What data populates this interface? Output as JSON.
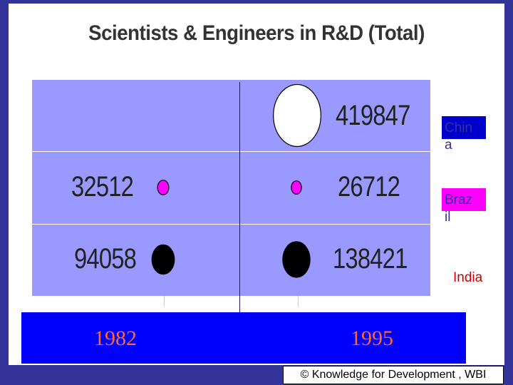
{
  "title": "Scientists & Engineers in R&D (Total)",
  "chart_data": {
    "type": "bubble",
    "title": "Scientists & Engineers in R&D (Total)",
    "x": [
      "1982",
      "1995"
    ],
    "series": [
      {
        "name": "China",
        "legend_text": [
          "Chin",
          "a"
        ],
        "values": [
          null,
          419847
        ],
        "labels": [
          "",
          "419847"
        ],
        "color": "#ffffff"
      },
      {
        "name": "Brazil",
        "legend_text": [
          "Braz",
          "il"
        ],
        "values": [
          32512,
          26712
        ],
        "labels": [
          "32512",
          "26712"
        ],
        "color": "#ff00ff"
      },
      {
        "name": "India",
        "legend_text": [
          "India"
        ],
        "values": [
          94058,
          138421
        ],
        "labels": [
          "94058",
          "138421"
        ],
        "color": "#000000"
      }
    ],
    "legend_position": "right",
    "grid": true
  },
  "footer": "© Knowledge for Development , WBI",
  "colors": {
    "background": "#333399",
    "plot": "#9999ff",
    "year_band": "#0000ff",
    "year_text": "#ff6633"
  }
}
